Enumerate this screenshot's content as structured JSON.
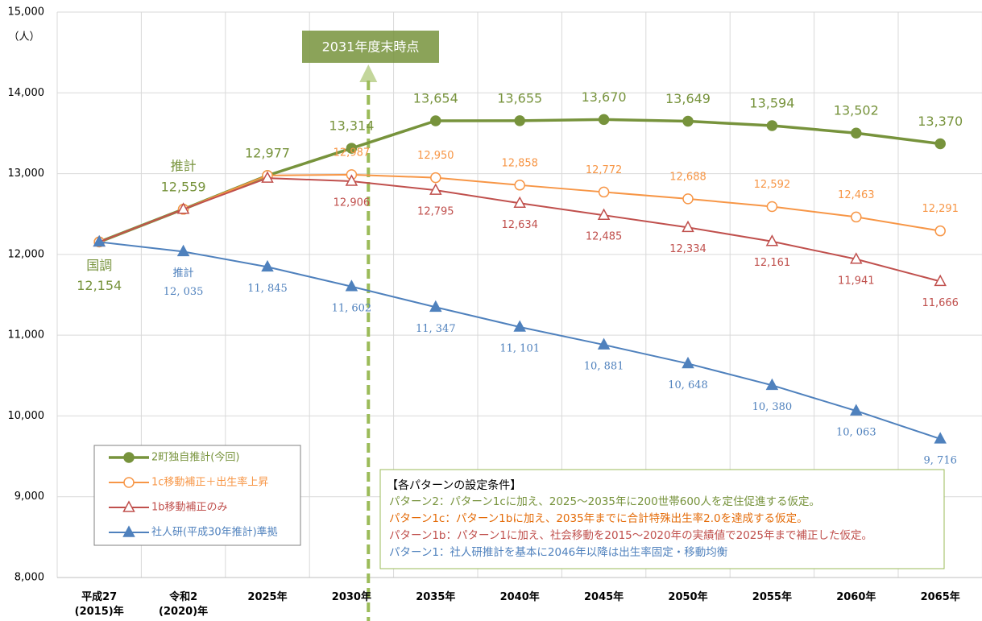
{
  "chart_data": {
    "type": "line",
    "unit_label": "（人）",
    "categories": [
      "平成27\n(2015)年",
      "令和2\n(2020)年",
      "2025年",
      "2030年",
      "2035年",
      "2040年",
      "2045年",
      "2050年",
      "2055年",
      "2060年",
      "2065年"
    ],
    "series": [
      {
        "name": "2町独自推計(今回)",
        "color": "#77933c",
        "marker": "circle-filled",
        "label_position": "above",
        "values": [
          12154,
          12559,
          12977,
          13314,
          13654,
          13655,
          13670,
          13649,
          13594,
          13502,
          13370
        ],
        "value_labels": [
          "12,154",
          "12,559",
          "12,977",
          "13,314",
          "13,654",
          "13,655",
          "13,670",
          "13,649",
          "13,594",
          "13,502",
          "13,370"
        ],
        "point_notes": [
          "国調",
          "推計",
          null,
          null,
          null,
          null,
          null,
          null,
          null,
          null,
          null
        ]
      },
      {
        "name": "1c移動補正＋出生率上昇",
        "color": "#f79646",
        "marker": "circle-open",
        "label_position": "above",
        "values": [
          12154,
          12559,
          12977,
          12987,
          12950,
          12858,
          12772,
          12688,
          12592,
          12463,
          12291
        ],
        "value_labels": [
          null,
          null,
          null,
          "12,987",
          "12,950",
          "12,858",
          "12,772",
          "12,688",
          "12,592",
          "12,463",
          "12,291"
        ]
      },
      {
        "name": "1b移動補正のみ",
        "color": "#c0504d",
        "marker": "triangle-open",
        "label_position": "below",
        "values": [
          12154,
          12559,
          12945,
          12906,
          12795,
          12634,
          12485,
          12334,
          12161,
          11941,
          11666
        ],
        "value_labels": [
          null,
          null,
          null,
          "12,906",
          "12,795",
          "12,634",
          "12,485",
          "12,334",
          "12,161",
          "11,941",
          "11,666"
        ]
      },
      {
        "name": "社人研(平成30年推計)準拠",
        "color": "#4f81bd",
        "marker": "triangle-filled",
        "label_position": "below",
        "values": [
          12154,
          12035,
          11845,
          11602,
          11347,
          11101,
          10881,
          10648,
          10380,
          10063,
          9716
        ],
        "value_labels": [
          null,
          "12, 035",
          "11, 845",
          "11, 602",
          "11, 347",
          "11, 101",
          "10, 881",
          "10, 648",
          "10, 380",
          "10, 063",
          "9, 716"
        ],
        "point_notes": [
          null,
          "推計",
          null,
          null,
          null,
          null,
          null,
          null,
          null,
          null,
          null
        ]
      }
    ],
    "ylim": [
      8000,
      15000
    ],
    "yticks": [
      {
        "value": 8000,
        "label": "8,000"
      },
      {
        "value": 9000,
        "label": "9,000"
      },
      {
        "value": 10000,
        "label": "10,000"
      },
      {
        "value": 11000,
        "label": "11,000"
      },
      {
        "value": 12000,
        "label": "12,000"
      },
      {
        "value": 13000,
        "label": "13,000"
      },
      {
        "value": 14000,
        "label": "14,000"
      },
      {
        "value": 15000,
        "label": "15,000"
      }
    ],
    "grid": true,
    "legend": "lower left",
    "reference_marker": {
      "label": "2031年度末時点",
      "color": "#9bbb59"
    },
    "notes": {
      "title": "【各パターンの設定条件】",
      "lines": [
        {
          "text": "パターン2：パターン1cに加え、2025～2035年に200世帯600人を定住促進する仮定。",
          "color": "#77933c"
        },
        {
          "text": "パターン1c：パターン1bに加え、2035年までに合計特殊出生率2.0を達成する仮定。",
          "color": "#e46c0a"
        },
        {
          "text": "パターン1b：パターン1に加え、社会移動を2015～2020年の実績値で2025年まで補正した仮定。",
          "color": "#c0504d"
        },
        {
          "text": "パターン1：社人研推計を基本に2046年以降は出生率固定・移動均衡",
          "color": "#4f81bd"
        }
      ]
    }
  }
}
